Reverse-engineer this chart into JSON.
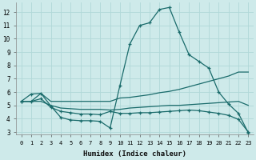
{
  "xlabel": "Humidex (Indice chaleur)",
  "bg_color": "#ceeaea",
  "line_color": "#1a6b6b",
  "grid_color": "#b0d8d8",
  "xlim": [
    -0.5,
    23.5
  ],
  "ylim": [
    2.8,
    12.7
  ],
  "yticks": [
    3,
    4,
    5,
    6,
    7,
    8,
    9,
    10,
    11,
    12
  ],
  "xticks": [
    0,
    1,
    2,
    3,
    4,
    5,
    6,
    7,
    8,
    9,
    10,
    11,
    12,
    13,
    14,
    15,
    16,
    17,
    18,
    19,
    20,
    21,
    22,
    23
  ],
  "curve1_x": [
    0,
    1,
    2,
    3,
    4,
    5,
    6,
    7,
    8,
    9,
    10,
    11,
    12,
    13,
    14,
    15,
    16,
    17,
    18,
    19,
    20,
    21,
    22,
    23
  ],
  "curve1_y": [
    5.3,
    5.85,
    5.9,
    4.95,
    4.1,
    3.9,
    3.85,
    3.85,
    3.8,
    3.3,
    6.5,
    9.6,
    11.0,
    11.2,
    12.2,
    12.35,
    10.5,
    8.8,
    8.3,
    7.8,
    6.0,
    5.1,
    4.4,
    2.95
  ],
  "curve2_x": [
    0,
    1,
    2,
    3,
    4,
    5,
    6,
    7,
    8,
    9,
    10,
    11,
    12,
    13,
    14,
    15,
    16,
    17,
    18,
    19,
    20,
    21,
    22,
    23
  ],
  "curve2_y": [
    5.3,
    5.3,
    5.9,
    5.3,
    5.3,
    5.3,
    5.3,
    5.3,
    5.3,
    5.3,
    5.55,
    5.6,
    5.7,
    5.8,
    5.95,
    6.05,
    6.2,
    6.4,
    6.6,
    6.8,
    7.0,
    7.2,
    7.5,
    7.5
  ],
  "curve3_x": [
    0,
    1,
    2,
    3,
    4,
    5,
    6,
    7,
    8,
    9,
    10,
    11,
    12,
    13,
    14,
    15,
    16,
    17,
    18,
    19,
    20,
    21,
    22,
    23
  ],
  "curve3_y": [
    5.3,
    5.3,
    5.3,
    5.0,
    4.8,
    4.75,
    4.7,
    4.7,
    4.7,
    4.65,
    4.7,
    4.8,
    4.85,
    4.9,
    4.95,
    5.0,
    5.0,
    5.05,
    5.1,
    5.15,
    5.2,
    5.25,
    5.3,
    5.0
  ],
  "curve4_x": [
    0,
    1,
    2,
    3,
    4,
    5,
    6,
    7,
    8,
    9,
    10,
    11,
    12,
    13,
    14,
    15,
    16,
    17,
    18,
    19,
    20,
    21,
    22,
    23
  ],
  "curve4_y": [
    5.3,
    5.3,
    5.5,
    4.85,
    4.55,
    4.45,
    4.35,
    4.35,
    4.3,
    4.55,
    4.4,
    4.4,
    4.45,
    4.45,
    4.5,
    4.55,
    4.6,
    4.65,
    4.6,
    4.5,
    4.4,
    4.25,
    3.95,
    3.0
  ]
}
